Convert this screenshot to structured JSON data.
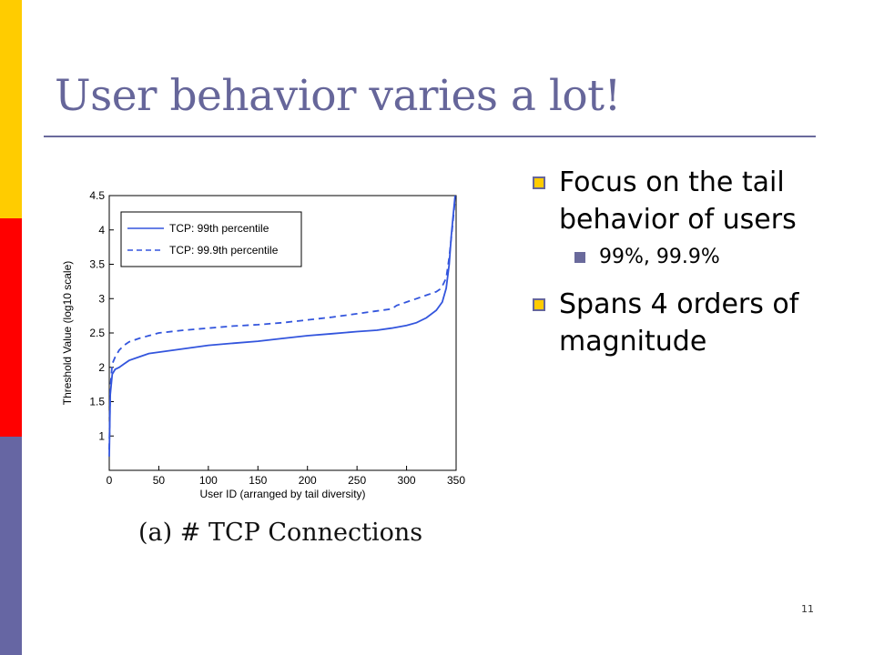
{
  "slide": {
    "title": "User behavior varies a lot!",
    "page_number": "11",
    "caption": "(a) # TCP Connections",
    "bullets": [
      {
        "text": "Focus on the tail behavior of users",
        "sub": [
          "99%, 99.9%"
        ]
      },
      {
        "text": "Spans 4 orders of magnitude",
        "sub": []
      }
    ],
    "colors": {
      "bar_top": "#ffcc00",
      "bar_mid": "#ff0000",
      "bar_bottom": "#6666a3",
      "title": "#66669a",
      "series": "#3355dd"
    }
  },
  "chart_data": {
    "type": "line",
    "xlabel": "User ID (arranged by tail diversity)",
    "ylabel": "Threshold Value (log10 scale)",
    "xlim": [
      0,
      350
    ],
    "ylim": [
      0.5,
      4.5
    ],
    "xticks": [
      0,
      50,
      100,
      150,
      200,
      250,
      300,
      350
    ],
    "yticks": [
      1,
      1.5,
      2,
      2.5,
      3,
      3.5,
      4,
      4.5
    ],
    "legend_position": "top-left",
    "series": [
      {
        "name": "TCP: 99th percentile",
        "style": "solid",
        "x": [
          0,
          1,
          3,
          6,
          10,
          15,
          20,
          30,
          40,
          50,
          75,
          100,
          125,
          150,
          175,
          200,
          225,
          250,
          270,
          285,
          300,
          310,
          320,
          330,
          336,
          340,
          343,
          345,
          347,
          349
        ],
        "y": [
          0.7,
          1.6,
          1.9,
          1.97,
          2.0,
          2.05,
          2.1,
          2.15,
          2.2,
          2.22,
          2.27,
          2.32,
          2.35,
          2.38,
          2.42,
          2.46,
          2.49,
          2.52,
          2.54,
          2.57,
          2.61,
          2.65,
          2.72,
          2.83,
          2.95,
          3.15,
          3.5,
          3.9,
          4.2,
          4.5
        ]
      },
      {
        "name": "TCP: 99.9th percentile",
        "style": "dashed",
        "x": [
          0,
          1,
          3,
          6,
          10,
          15,
          20,
          30,
          40,
          50,
          75,
          100,
          125,
          150,
          175,
          200,
          225,
          250,
          270,
          285,
          290,
          300,
          310,
          320,
          330,
          335,
          340,
          343,
          346,
          349
        ],
        "y": [
          0.8,
          1.7,
          2.05,
          2.15,
          2.25,
          2.32,
          2.37,
          2.42,
          2.46,
          2.5,
          2.54,
          2.57,
          2.6,
          2.62,
          2.65,
          2.69,
          2.73,
          2.78,
          2.82,
          2.85,
          2.9,
          2.95,
          3.0,
          3.05,
          3.1,
          3.15,
          3.3,
          3.6,
          4.0,
          4.45
        ]
      }
    ]
  }
}
